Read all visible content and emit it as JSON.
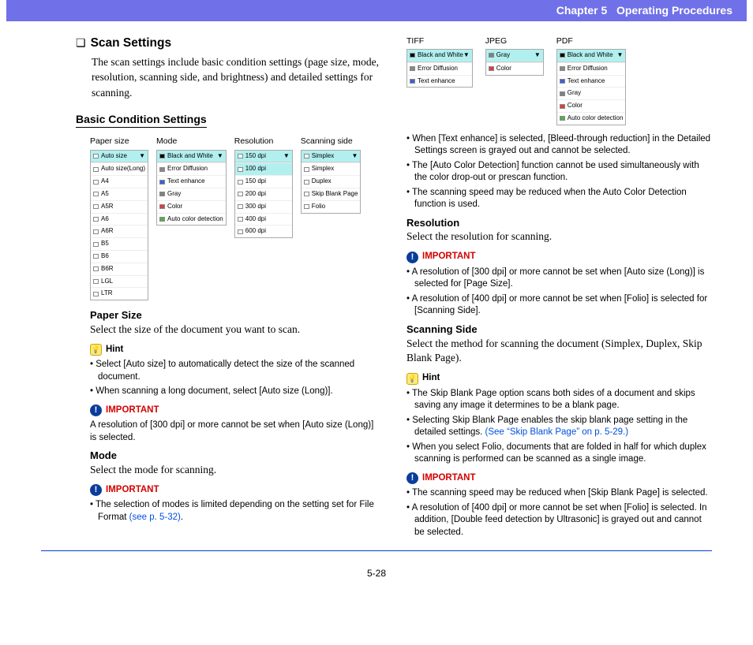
{
  "header": {
    "chapter": "Chapter 5",
    "title": "Operating Procedures"
  },
  "main": {
    "scan_settings": {
      "title": "Scan Settings",
      "intro": "The scan settings include basic condition settings (page size, mode, resolution, scanning side, and brightness) and detailed settings for scanning."
    },
    "basic": {
      "title": "Basic Condition Settings",
      "paper_label": "Paper size",
      "mode_label": "Mode",
      "res_label": "Resolution",
      "side_label": "Scanning side",
      "paper": {
        "selected": "Auto size",
        "items": [
          "Auto size(Long)",
          "A4",
          "A5",
          "A5R",
          "A6",
          "A6R",
          "B5",
          "B6",
          "B6R",
          "LGL",
          "LTR"
        ]
      },
      "mode": {
        "selected": "Black and White",
        "items": [
          {
            "label": "Black and White",
            "c": "#000000"
          },
          {
            "label": "Error Diffusion",
            "c": "#888888"
          },
          {
            "label": "Text enhance",
            "c": "#3a60d8"
          },
          {
            "label": "Gray",
            "c": "#808080"
          },
          {
            "label": "Color",
            "c": "#d84040"
          },
          {
            "label": "Auto color detection",
            "c": "#50b050"
          }
        ]
      },
      "res": {
        "selected": "150 dpi",
        "items": [
          "100 dpi",
          "150 dpi",
          "200 dpi",
          "300 dpi",
          "400 dpi",
          "600 dpi"
        ]
      },
      "side": {
        "selected": "Simplex",
        "items": [
          "Simplex",
          "Duplex",
          "Skip Blank Page",
          "Folio"
        ]
      }
    },
    "paper_size": {
      "title": "Paper Size",
      "body": "Select the size of the document you want to scan.",
      "hint_label": "Hint",
      "hints": [
        "Select [Auto size] to automatically detect the size of the scanned document.",
        "When scanning a long document, select [Auto size (Long)]."
      ],
      "imp_label": "IMPORTANT",
      "imp": "A resolution of [300 dpi] or more cannot be set when [Auto size (Long)] is selected."
    },
    "mode_sec": {
      "title": "Mode",
      "body": "Select the mode for scanning.",
      "imp_label": "IMPORTANT",
      "imp_pre": "The selection of modes is limited depending on the setting set for File Format ",
      "imp_link": "(see p. 5-32)",
      "imp_post": "."
    },
    "formats": {
      "tiff": {
        "label": "TIFF",
        "selected": "Black and White",
        "items": [
          {
            "label": "Black and White",
            "c": "#000000"
          },
          {
            "label": "Error Diffusion",
            "c": "#888888"
          },
          {
            "label": "Text enhance",
            "c": "#3a60d8"
          }
        ]
      },
      "jpeg": {
        "label": "JPEG",
        "selected": "Gray",
        "items": [
          {
            "label": "Gray",
            "c": "#808080"
          },
          {
            "label": "Color",
            "c": "#d84040"
          }
        ]
      },
      "pdf": {
        "label": "PDF",
        "selected": "Black and White",
        "items": [
          {
            "label": "Black and White",
            "c": "#000000"
          },
          {
            "label": "Error Diffusion",
            "c": "#888888"
          },
          {
            "label": "Text enhance",
            "c": "#3a60d8"
          },
          {
            "label": "Gray",
            "c": "#808080"
          },
          {
            "label": "Color",
            "c": "#d84040"
          },
          {
            "label": "Auto color detection",
            "c": "#50b050"
          }
        ]
      }
    },
    "mode_notes": [
      "When [Text enhance] is selected, [Bleed-through reduction] in the Detailed Settings screen is grayed out and cannot be selected.",
      "The [Auto Color Detection] function cannot be used simultaneously with the color drop-out or prescan function.",
      "The scanning speed may be reduced when the Auto Color Detection function is used."
    ],
    "resolution": {
      "title": "Resolution",
      "body": "Select the resolution for scanning.",
      "imp_label": "IMPORTANT",
      "imps": [
        "A resolution of [300 dpi] or more cannot be set when [Auto size (Long)] is selected for [Page Size].",
        "A resolution of [400 dpi] or more cannot be set when [Folio] is selected for [Scanning Side]."
      ]
    },
    "scanning_side": {
      "title": "Scanning Side",
      "body": "Select the method for scanning the document (Simplex, Duplex, Skip Blank Page).",
      "hint_label": "Hint",
      "hints": [
        {
          "t": "The Skip Blank Page option scans both sides of a document and skips saving any image it determines to be a blank page."
        },
        {
          "t": "Selecting Skip Blank Page enables the skip blank page setting in the detailed settings. ",
          "l": "(See “Skip Blank Page” on p. 5-29.)"
        },
        {
          "t": "When you select Folio, documents that are folded in half for which duplex scanning is performed can be scanned as a single image."
        }
      ],
      "imp_label": "IMPORTANT",
      "imps": [
        "The scanning speed may be reduced when [Skip Blank Page] is selected.",
        "A resolution of [400 dpi] or more cannot be set when [Folio] is selected. In addition, [Double feed detection by Ultrasonic] is grayed out and cannot be selected."
      ]
    }
  },
  "page_no": "5-28"
}
